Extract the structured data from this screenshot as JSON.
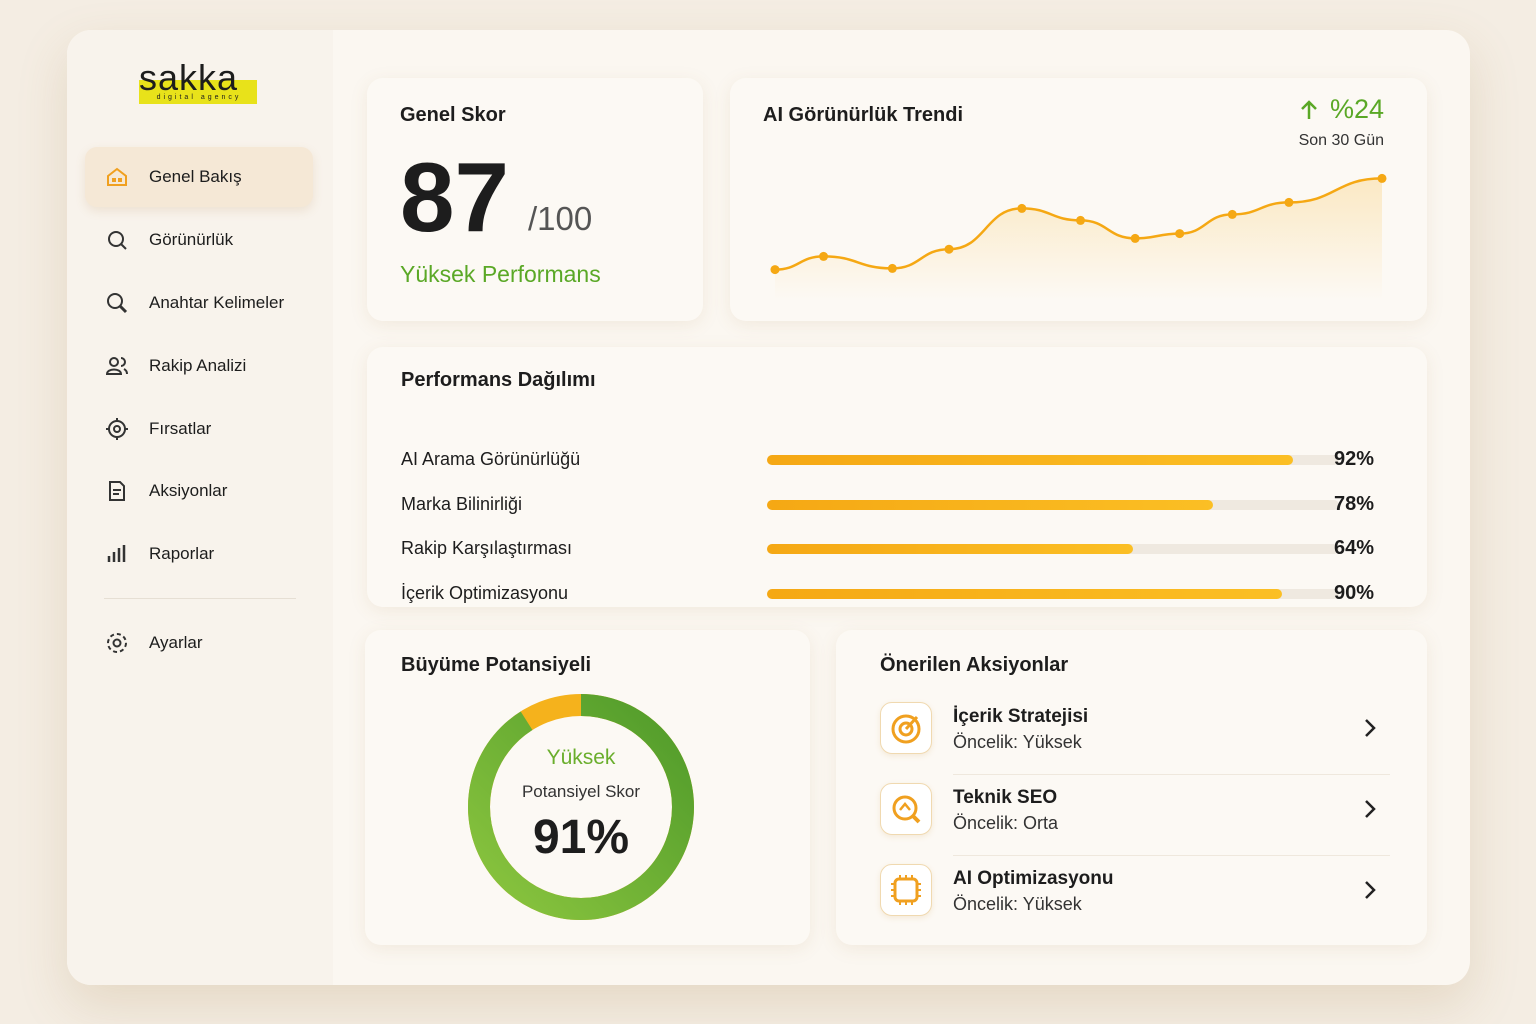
{
  "logo": {
    "name": "sakka",
    "tagline": "digital agency"
  },
  "sidebar": {
    "items": [
      "Genel Bakış",
      "Görünürlük",
      "Anahtar Kelimeler",
      "Rakip Analizi",
      "Fırsatlar",
      "Aksiyonlar",
      "Raporlar"
    ],
    "settings": "Ayarlar"
  },
  "score": {
    "title": "Genel Skor",
    "value": 87,
    "max_label": "/100",
    "status": "Yüksek Performans"
  },
  "trend": {
    "title": "AI Görünürlük Trendi",
    "change": {
      "value": 24,
      "label": "%24"
    },
    "period": "Son 30 Gün",
    "chart_data": {
      "type": "line",
      "x": [
        0,
        2.4,
        5.8,
        8.6,
        12.2,
        15.1,
        17.8,
        20,
        22.6,
        25.4,
        30
      ],
      "values": [
        17,
        28,
        18,
        34,
        68,
        58,
        43,
        47,
        63,
        73,
        93
      ],
      "xlim": [
        0,
        30
      ],
      "ylim": [
        0,
        100
      ],
      "color": "#f5a814"
    }
  },
  "performance": {
    "title": "Performans Dağılımı",
    "chart_data": {
      "type": "bar",
      "categories": [
        "AI Arama Görünürlüğü",
        "Marka Bilinirliği",
        "Rakip Karşılaştırması",
        "İçerik Optimizasyonu"
      ],
      "values": [
        92,
        78,
        64,
        90
      ],
      "value_labels": [
        "92%",
        "78%",
        "64%",
        "90%"
      ],
      "xlim": [
        0,
        100
      ],
      "color": "#f5a814"
    }
  },
  "growth": {
    "title": "Büyüme Potansiyeli",
    "level": "Yüksek",
    "caption": "Potansiyel Skor",
    "chart_data": {
      "type": "donut",
      "value": 91,
      "value_label": "91%",
      "max": 100,
      "color": "#6aae2c",
      "rest_color": "#f5b21c"
    }
  },
  "actions": {
    "title": "Önerilen Aksiyonlar",
    "items": [
      {
        "name": "İçerik Stratejisi",
        "priority": "Öncelik: Yüksek"
      },
      {
        "name": "Teknik SEO",
        "priority": "Öncelik: Orta"
      },
      {
        "name": "AI Optimizasyonu",
        "priority": "Öncelik: Yüksek"
      }
    ]
  }
}
